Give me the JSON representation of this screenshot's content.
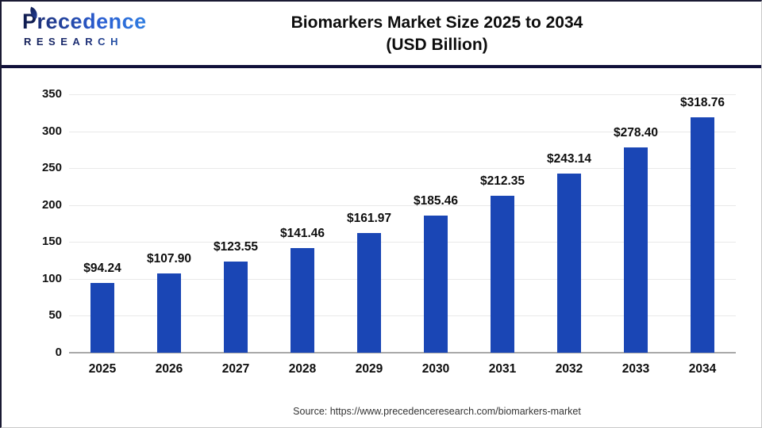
{
  "header": {
    "logo": {
      "p": "P",
      "line1_rest": "recedence",
      "line2": "RESEARCH"
    },
    "title_line1": "Biomarkers Market Size 2025 to 2034",
    "title_line2": "(USD Billion)"
  },
  "chart_data": {
    "type": "bar",
    "title": "Biomarkers Market Size 2025 to 2034 (USD Billion)",
    "categories": [
      "2025",
      "2026",
      "2027",
      "2028",
      "2029",
      "2030",
      "2031",
      "2032",
      "2033",
      "2034"
    ],
    "values": [
      94.24,
      107.9,
      123.55,
      141.46,
      161.97,
      185.46,
      212.35,
      243.14,
      278.4,
      318.76
    ],
    "value_labels": [
      "$94.24",
      "$107.90",
      "$123.55",
      "$141.46",
      "$161.97",
      "$185.46",
      "$212.35",
      "$243.14",
      "$278.40",
      "$318.76"
    ],
    "xlabel": "",
    "ylabel": "",
    "ylim": [
      0,
      350
    ],
    "y_ticks": [
      0,
      50,
      100,
      150,
      200,
      250,
      300,
      350
    ],
    "grid": "horizontal",
    "legend": "none",
    "bar_color": "#1a46b5"
  },
  "footer": {
    "source": "Source: https://www.precedenceresearch.com/biomarkers-market"
  }
}
